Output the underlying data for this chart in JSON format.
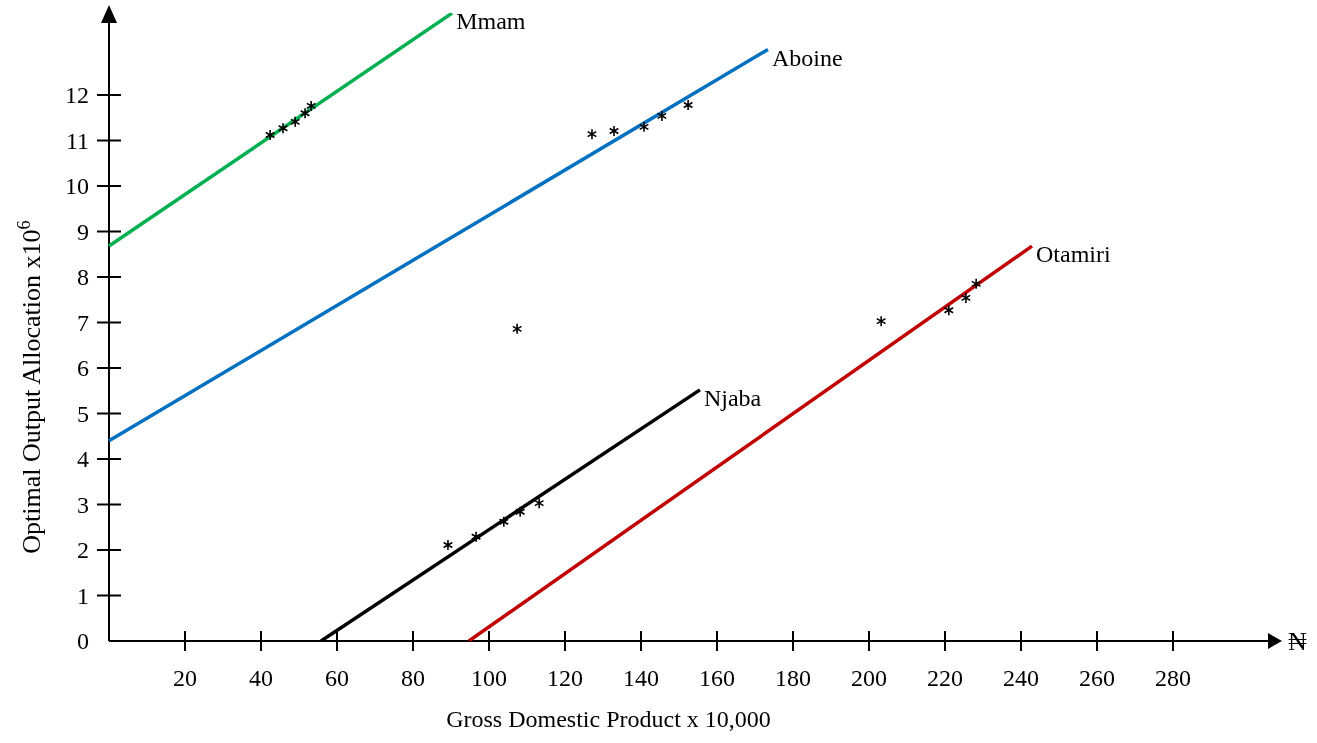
{
  "chart_data": {
    "type": "line",
    "xlabel": "Gross Domestic Product x 10,000",
    "ylabel": "Optimal Output Allocation x10$^{6}$",
    "xlim": [
      0,
      305
    ],
    "ylim": [
      0,
      13.8
    ],
    "xticks": [
      20,
      40,
      60,
      80,
      100,
      120,
      140,
      160,
      180,
      200,
      220,
      240,
      260,
      280
    ],
    "yticks": [
      0,
      1,
      2,
      3,
      4,
      5,
      6,
      7,
      8,
      9,
      10,
      11,
      12
    ],
    "grid": false,
    "line_style": "solid",
    "annotations": [
      "₦"
    ],
    "series": [
      {
        "name": "Mmam",
        "color": "#00b050",
        "x": [
          0,
          90.3
        ],
        "values": [
          8.68,
          13.8
        ]
      },
      {
        "name": "Aboine",
        "color": "#0070c0",
        "x": [
          0,
          173.4
        ],
        "values": [
          4.4,
          13.0
        ]
      },
      {
        "name": "Njaba",
        "color": "#000000",
        "x": [
          55.8,
          155.5
        ],
        "values": [
          0,
          5.52
        ]
      },
      {
        "name": "Otamiri",
        "color": "#c00000",
        "x": [
          94.7,
          242.9
        ],
        "values": [
          0,
          8.68
        ]
      },
      {
        "type": "scatter",
        "color": "#000000",
        "marker": "cross",
        "x": [
          42.4,
          45.8,
          49,
          51.6,
          53.2,
          127.1,
          132.9,
          140.8,
          145.5,
          152.4,
          107.4,
          89.2,
          96.6,
          103.9,
          108.2,
          113.2,
          203.2,
          221,
          225.5,
          228.2
        ],
        "values": [
          11.12,
          11.27,
          11.41,
          11.6,
          11.76,
          11.14,
          11.21,
          11.3,
          11.54,
          11.78,
          6.86,
          2.11,
          2.29,
          2.62,
          2.84,
          3.03,
          7.03,
          7.27,
          7.54,
          7.85
        ]
      }
    ]
  }
}
